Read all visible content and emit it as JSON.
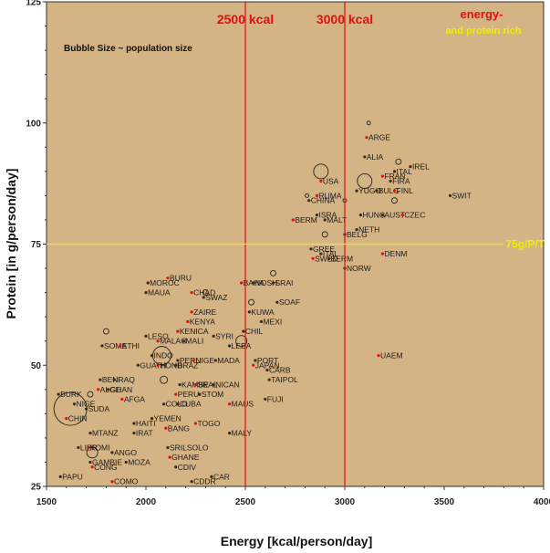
{
  "chart_data": {
    "type": "scatter",
    "title": "",
    "xlabel": "Energy [kcal/person/day]",
    "ylabel": "Protein [in g/person/day]",
    "xlim": [
      1500,
      4000
    ],
    "ylim": [
      25,
      125
    ],
    "xticks": [
      "1500",
      "2000",
      "2500",
      "3000",
      "3500",
      "4000"
    ],
    "yticks": [
      "25",
      "50",
      "75",
      "100",
      "125"
    ],
    "background_color": "#d4b384",
    "note": "Bubble Size ~ population size",
    "reference_lines": [
      {
        "orientation": "vertical",
        "value": 2500,
        "label": "2500 kcal",
        "color": "#e01010"
      },
      {
        "orientation": "vertical",
        "value": 3000,
        "label": "3000 kcal",
        "color": "#e01010"
      },
      {
        "orientation": "horizontal",
        "value": 75,
        "label": "75g/P/T",
        "color": "#f0f000"
      }
    ],
    "corner_label": {
      "line1": "energy-",
      "line2": "and protein rich",
      "color1": "#e01010",
      "color2": "#f0f000"
    },
    "points": [
      {
        "label": "ARGE",
        "x": 3110,
        "y": 97
      },
      {
        "label": "ALIA",
        "x": 3100,
        "y": 93
      },
      {
        "label": "IREL",
        "x": 3330,
        "y": 91
      },
      {
        "label": "FRAN",
        "x": 3190,
        "y": 89
      },
      {
        "label": "ITAL",
        "x": 3250,
        "y": 90
      },
      {
        "label": "FIRA",
        "x": 3230,
        "y": 88
      },
      {
        "label": "USA",
        "x": 2880,
        "y": 88
      },
      {
        "label": "YUGO",
        "x": 3060,
        "y": 86
      },
      {
        "label": "BULG",
        "x": 3160,
        "y": 86
      },
      {
        "label": "FINL",
        "x": 3250,
        "y": 86
      },
      {
        "label": "SWIT",
        "x": 3530,
        "y": 85
      },
      {
        "label": "CHINA",
        "x": 2820,
        "y": 84
      },
      {
        "label": "RUMA",
        "x": 2860,
        "y": 85
      },
      {
        "label": "HUNG",
        "x": 3080,
        "y": 81
      },
      {
        "label": "AUST",
        "x": 3190,
        "y": 81
      },
      {
        "label": "CZEC",
        "x": 3290,
        "y": 81
      },
      {
        "label": "ISRA",
        "x": 2860,
        "y": 81
      },
      {
        "label": "MALT",
        "x": 2900,
        "y": 80
      },
      {
        "label": "BERM",
        "x": 2740,
        "y": 80
      },
      {
        "label": "NETH",
        "x": 3060,
        "y": 78
      },
      {
        "label": "BELG",
        "x": 3000,
        "y": 77
      },
      {
        "label": "DENM",
        "x": 3190,
        "y": 73
      },
      {
        "label": "GREE",
        "x": 2830,
        "y": 74
      },
      {
        "label": "ITAL",
        "x": 2880,
        "y": 73
      },
      {
        "label": "SWED",
        "x": 2840,
        "y": 72
      },
      {
        "label": "BERM",
        "x": 2920,
        "y": 72
      },
      {
        "label": "NORW",
        "x": 3000,
        "y": 70
      },
      {
        "label": "BURU",
        "x": 2110,
        "y": 68
      },
      {
        "label": "MOROC",
        "x": 2010,
        "y": 67
      },
      {
        "label": "MAUA",
        "x": 2000,
        "y": 65
      },
      {
        "label": "BAHA",
        "x": 2480,
        "y": 67
      },
      {
        "label": "NOSH",
        "x": 2540,
        "y": 67
      },
      {
        "label": "SRAI",
        "x": 2640,
        "y": 67
      },
      {
        "label": "CHAD",
        "x": 2230,
        "y": 65
      },
      {
        "label": "SWAZ",
        "x": 2290,
        "y": 64
      },
      {
        "label": "SOAF",
        "x": 2660,
        "y": 63
      },
      {
        "label": "ZAIRE",
        "x": 2230,
        "y": 61
      },
      {
        "label": "KUWA",
        "x": 2520,
        "y": 61
      },
      {
        "label": "MEXI",
        "x": 2580,
        "y": 59
      },
      {
        "label": "KENYA",
        "x": 2210,
        "y": 59
      },
      {
        "label": "CHIL",
        "x": 2490,
        "y": 57
      },
      {
        "label": "SYRI",
        "x": 2340,
        "y": 56
      },
      {
        "label": "KENICA",
        "x": 2160,
        "y": 57
      },
      {
        "label": "MALI",
        "x": 2190,
        "y": 55
      },
      {
        "label": "LESO",
        "x": 2000,
        "y": 56
      },
      {
        "label": "MALAO",
        "x": 2060,
        "y": 55
      },
      {
        "label": "LEBA",
        "x": 2420,
        "y": 54
      },
      {
        "label": "SOMA",
        "x": 1780,
        "y": 54
      },
      {
        "label": "ETHI",
        "x": 1870,
        "y": 54
      },
      {
        "label": "INDO",
        "x": 2030,
        "y": 52
      },
      {
        "label": "PERU",
        "x": 2160,
        "y": 51
      },
      {
        "label": "NIGE",
        "x": 2240,
        "y": 51
      },
      {
        "label": "MADA",
        "x": 2350,
        "y": 51
      },
      {
        "label": "GUATH",
        "x": 1960,
        "y": 50
      },
      {
        "label": "HOND",
        "x": 2060,
        "y": 50
      },
      {
        "label": "BRAZ",
        "x": 2150,
        "y": 50
      },
      {
        "label": "PORT",
        "x": 2550,
        "y": 51
      },
      {
        "label": "JAPAN",
        "x": 2540,
        "y": 50
      },
      {
        "label": "CARB",
        "x": 2610,
        "y": 49
      },
      {
        "label": "TAIPOL",
        "x": 2620,
        "y": 47
      },
      {
        "label": "UAEM",
        "x": 3170,
        "y": 52
      },
      {
        "label": "BENI",
        "x": 1770,
        "y": 47
      },
      {
        "label": "IRAQ",
        "x": 1840,
        "y": 47
      },
      {
        "label": "ALGE",
        "x": 1760,
        "y": 45
      },
      {
        "label": "GHAN",
        "x": 1810,
        "y": 45
      },
      {
        "label": "KAMBE",
        "x": 2170,
        "y": 46
      },
      {
        "label": "SRAL",
        "x": 2250,
        "y": 46
      },
      {
        "label": "NICAN",
        "x": 2340,
        "y": 46
      },
      {
        "label": "BURK",
        "x": 1560,
        "y": 44
      },
      {
        "label": "PERU",
        "x": 2150,
        "y": 44
      },
      {
        "label": "STOM",
        "x": 2270,
        "y": 44
      },
      {
        "label": "NIGE",
        "x": 1640,
        "y": 42
      },
      {
        "label": "AFGA",
        "x": 1880,
        "y": 43
      },
      {
        "label": "COLO",
        "x": 2090,
        "y": 42
      },
      {
        "label": "CUBA",
        "x": 2160,
        "y": 42
      },
      {
        "label": "MAUS",
        "x": 2420,
        "y": 42
      },
      {
        "label": "FUJI",
        "x": 2600,
        "y": 43
      },
      {
        "label": "SUDA",
        "x": 1700,
        "y": 41
      },
      {
        "label": "CHIN",
        "x": 1600,
        "y": 39
      },
      {
        "label": "HAITI",
        "x": 1940,
        "y": 38
      },
      {
        "label": "YEMEN",
        "x": 2030,
        "y": 39
      },
      {
        "label": "TOGO",
        "x": 2250,
        "y": 38
      },
      {
        "label": "MTANZ",
        "x": 1720,
        "y": 36
      },
      {
        "label": "IRAT",
        "x": 1940,
        "y": 36
      },
      {
        "label": "BANG",
        "x": 2100,
        "y": 37
      },
      {
        "label": "MALY",
        "x": 2420,
        "y": 36
      },
      {
        "label": "LIBR",
        "x": 1660,
        "y": 33
      },
      {
        "label": "KOMI",
        "x": 1710,
        "y": 33
      },
      {
        "label": "SRILSOLO",
        "x": 2110,
        "y": 33
      },
      {
        "label": "ANGO",
        "x": 1830,
        "y": 32
      },
      {
        "label": "GHANE",
        "x": 2120,
        "y": 31
      },
      {
        "label": "MOZA",
        "x": 1900,
        "y": 30
      },
      {
        "label": "GAMBIE",
        "x": 1720,
        "y": 30
      },
      {
        "label": "CONG",
        "x": 1730,
        "y": 29
      },
      {
        "label": "CDIV",
        "x": 2150,
        "y": 29
      },
      {
        "label": "PAPU",
        "x": 1570,
        "y": 27
      },
      {
        "label": "COMO",
        "x": 1830,
        "y": 26
      },
      {
        "label": "CAR",
        "x": 2330,
        "y": 27
      },
      {
        "label": "CDDR",
        "x": 2230,
        "y": 26
      }
    ],
    "bubbles": [
      {
        "x": 1620,
        "y": 41,
        "r": 18
      },
      {
        "x": 2080,
        "y": 52,
        "r": 10
      },
      {
        "x": 2880,
        "y": 90,
        "r": 8
      },
      {
        "x": 3100,
        "y": 88,
        "r": 8
      },
      {
        "x": 1730,
        "y": 32,
        "r": 6
      },
      {
        "x": 2480,
        "y": 55,
        "r": 6
      },
      {
        "x": 1800,
        "y": 57,
        "r": 3
      },
      {
        "x": 2300,
        "y": 65,
        "r": 3
      },
      {
        "x": 3270,
        "y": 92,
        "r": 3
      },
      {
        "x": 3250,
        "y": 84,
        "r": 3
      },
      {
        "x": 2900,
        "y": 77,
        "r": 3
      },
      {
        "x": 2640,
        "y": 69,
        "r": 3
      },
      {
        "x": 2530,
        "y": 63,
        "r": 3
      },
      {
        "x": 2090,
        "y": 47,
        "r": 4
      },
      {
        "x": 1720,
        "y": 44,
        "r": 3
      },
      {
        "x": 3120,
        "y": 100,
        "r": 2
      },
      {
        "x": 2810,
        "y": 85,
        "r": 2
      },
      {
        "x": 3000,
        "y": 84,
        "r": 2
      }
    ]
  }
}
